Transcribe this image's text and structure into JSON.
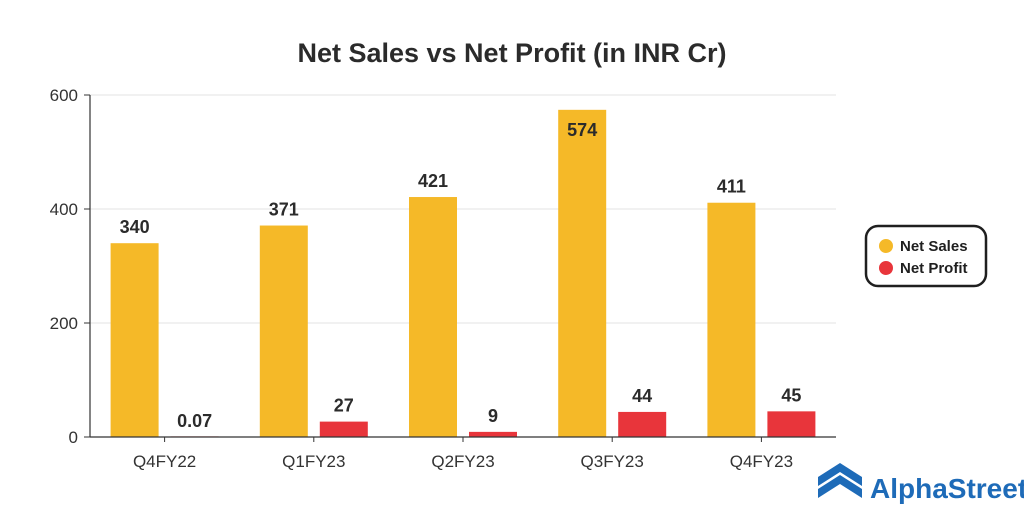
{
  "chart_data": {
    "type": "bar",
    "title": "Net Sales vs Net Profit (in INR Cr)",
    "categories": [
      "Q4FY22",
      "Q1FY23",
      "Q2FY23",
      "Q3FY23",
      "Q4FY23"
    ],
    "series": [
      {
        "name": "Net Sales",
        "color": "#F5B928",
        "values": [
          340,
          371,
          421,
          574,
          411
        ],
        "labels": [
          "340",
          "371",
          "421",
          "574",
          "411"
        ]
      },
      {
        "name": "Net Profit",
        "color": "#E8353B",
        "values": [
          0.07,
          27,
          9,
          44,
          45
        ],
        "labels": [
          "0.07",
          "27",
          "9",
          "44",
          "45"
        ]
      }
    ],
    "ylim": [
      0,
      600
    ],
    "yticks": [
      0,
      200,
      400,
      600
    ],
    "grid": true,
    "legend": "right"
  },
  "brand": {
    "name": "AlphaStreet",
    "color": "#1E6BB8"
  }
}
